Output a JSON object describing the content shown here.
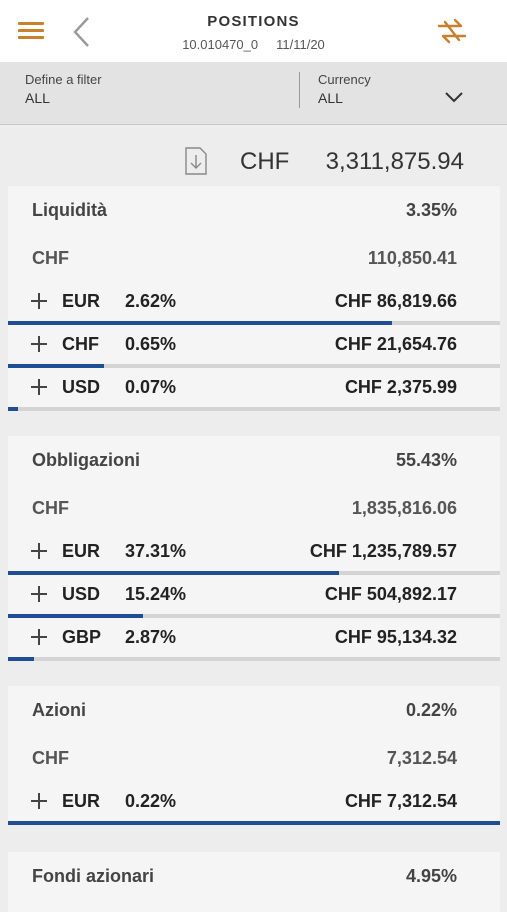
{
  "header": {
    "title": "POSITIONS",
    "account": "10.010470_0",
    "date": "11/11/20",
    "icons": {
      "menu": "menu-icon",
      "back": "back-chevron-icon",
      "swap": "swap-arrows-icon"
    }
  },
  "filter": {
    "label": "Define a filter",
    "value": "ALL"
  },
  "currency": {
    "label": "Currency",
    "value": "ALL"
  },
  "total": {
    "currency": "CHF",
    "amount": "3,311,875.94"
  },
  "colors": {
    "accent": "#c8812a",
    "bar": "#1e4e96"
  },
  "sections": [
    {
      "title": "Liquidità",
      "pct": "3.35%",
      "chf_label": "CHF",
      "chf_amount": "110,850.41",
      "rows": [
        {
          "currency": "EUR",
          "pct": "2.62%",
          "amount": "CHF 86,819.66",
          "bar_fraction": 0.78
        },
        {
          "currency": "CHF",
          "pct": "0.65%",
          "amount": "CHF 21,654.76",
          "bar_fraction": 0.195
        },
        {
          "currency": "USD",
          "pct": "0.07%",
          "amount": "CHF 2,375.99",
          "bar_fraction": 0.02
        }
      ]
    },
    {
      "title": "Obbligazioni",
      "pct": "55.43%",
      "chf_label": "CHF",
      "chf_amount": "1,835,816.06",
      "rows": [
        {
          "currency": "EUR",
          "pct": "37.31%",
          "amount": "CHF 1,235,789.57",
          "bar_fraction": 0.673
        },
        {
          "currency": "USD",
          "pct": "15.24%",
          "amount": "CHF 504,892.17",
          "bar_fraction": 0.275
        },
        {
          "currency": "GBP",
          "pct": "2.87%",
          "amount": "CHF 95,134.32",
          "bar_fraction": 0.052
        }
      ]
    },
    {
      "title": "Azioni",
      "pct": "0.22%",
      "chf_label": "CHF",
      "chf_amount": "7,312.54",
      "rows": [
        {
          "currency": "EUR",
          "pct": "0.22%",
          "amount": "CHF 7,312.54",
          "bar_fraction": 1.0
        }
      ]
    },
    {
      "title": "Fondi azionari",
      "pct": "4.95%"
    }
  ]
}
